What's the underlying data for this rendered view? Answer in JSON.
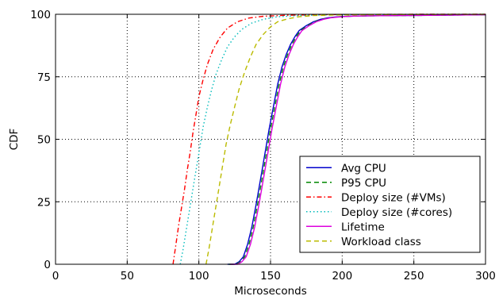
{
  "chart_data": {
    "type": "line",
    "title": "",
    "xlabel": "Microseconds",
    "ylabel": "CDF",
    "xlim": [
      0,
      300
    ],
    "ylim": [
      0,
      100
    ],
    "xticks": [
      0,
      50,
      100,
      150,
      200,
      250,
      300
    ],
    "yticks": [
      0,
      25,
      50,
      75,
      100
    ],
    "xtick_labels": [
      "0",
      "50",
      "100",
      "150",
      "200",
      "250",
      "300"
    ],
    "ytick_labels": [
      "0",
      "25",
      "50",
      "75",
      "100"
    ],
    "grid": true,
    "legend_position": "bottom-right",
    "series": [
      {
        "name": "Avg CPU",
        "color": "#0000cc",
        "dash": "solid",
        "x": [
          120,
          125,
          128,
          131,
          134,
          137,
          140,
          143,
          146,
          149,
          152,
          155,
          158,
          161,
          164,
          167,
          170,
          175,
          180,
          185,
          190,
          195,
          200,
          210,
          220,
          240,
          260,
          280,
          300
        ],
        "y": [
          0,
          0,
          1,
          3,
          8,
          15,
          24,
          34,
          44,
          54,
          63,
          72,
          79,
          84,
          88,
          91,
          93.5,
          95.5,
          97,
          98,
          98.6,
          98.9,
          99.1,
          99.3,
          99.4,
          99.5,
          99.6,
          99.7,
          99.8
        ]
      },
      {
        "name": "P95 CPU",
        "color": "#008800",
        "dash": "dashed",
        "x": [
          121,
          126,
          129,
          132,
          135,
          138,
          141,
          144,
          147,
          150,
          153,
          156,
          159,
          162,
          165,
          168,
          171,
          176,
          181,
          186,
          191,
          196,
          201,
          210,
          220,
          240,
          260,
          280,
          300
        ],
        "y": [
          0,
          0,
          1,
          3,
          8,
          15,
          24,
          34,
          44,
          54,
          63,
          72,
          79,
          84,
          88,
          91,
          93.5,
          95.5,
          97,
          98,
          98.6,
          98.9,
          99.1,
          99.3,
          99.4,
          99.5,
          99.6,
          99.7,
          99.8
        ]
      },
      {
        "name": "Deploy size (#VMs)",
        "color": "#ff0000",
        "dash": "dashdot",
        "x": [
          82,
          84,
          86,
          88,
          90,
          92,
          94,
          96,
          98,
          100,
          103,
          106,
          110,
          115,
          120,
          127,
          135,
          145,
          160,
          180,
          200,
          250,
          300
        ],
        "y": [
          0,
          8,
          16,
          23,
          30,
          38,
          45,
          53,
          60,
          67,
          74,
          80,
          86,
          91,
          94.5,
          97,
          98.5,
          99.2,
          99.6,
          99.8,
          99.9,
          100,
          100
        ]
      },
      {
        "name": "Deploy size (#cores)",
        "color": "#00bbbb",
        "dash": "dotted",
        "x": [
          87,
          89,
          91,
          93,
          95,
          97,
          99,
          101,
          103,
          106,
          109,
          112,
          116,
          120,
          125,
          130,
          137,
          145,
          155,
          170,
          190,
          220,
          300
        ],
        "y": [
          0,
          6,
          13,
          20,
          27,
          34,
          41,
          48,
          55,
          63,
          70,
          76,
          82,
          87,
          91,
          94,
          96.5,
          98,
          99,
          99.5,
          99.8,
          99.9,
          100
        ]
      },
      {
        "name": "Lifetime",
        "color": "#dd00dd",
        "dash": "solid",
        "x": [
          122,
          127,
          130,
          133,
          136,
          139,
          142,
          145,
          148,
          151,
          154,
          157,
          160,
          163,
          166,
          169,
          172,
          177,
          182,
          187,
          192,
          197,
          202,
          210,
          220,
          240,
          260,
          280,
          300
        ],
        "y": [
          0,
          0,
          1,
          3,
          8,
          15,
          24,
          34,
          44,
          54,
          63,
          72,
          79,
          84,
          88,
          91,
          93.5,
          95.5,
          97,
          98,
          98.6,
          98.9,
          99.1,
          99.3,
          99.4,
          99.5,
          99.6,
          99.7,
          99.8
        ]
      },
      {
        "name": "Workload class",
        "color": "#bbbb00",
        "dash": "dashed",
        "x": [
          105,
          107,
          109,
          111,
          113,
          115,
          117,
          119,
          122,
          125,
          128,
          132,
          136,
          140,
          145,
          150,
          155,
          162,
          170,
          180,
          195,
          215,
          240,
          300
        ],
        "y": [
          0,
          6,
          13,
          20,
          27,
          34,
          41,
          48,
          56,
          63,
          70,
          77,
          83,
          88,
          92,
          95,
          97,
          98.2,
          99,
          99.5,
          99.7,
          99.8,
          99.9,
          100
        ]
      }
    ]
  }
}
